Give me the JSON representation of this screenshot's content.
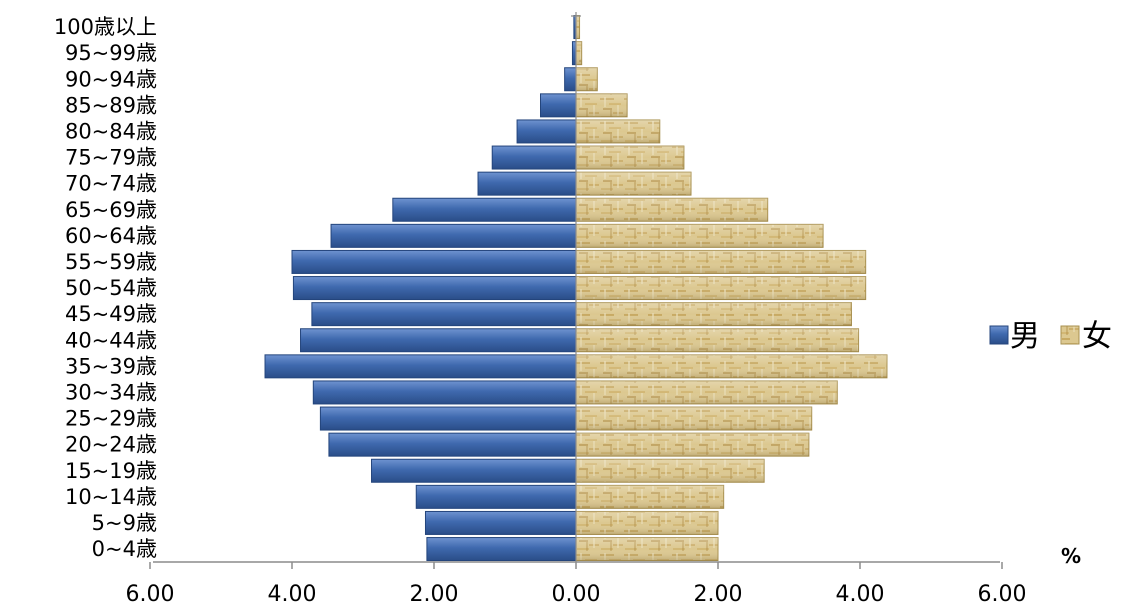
{
  "chart_data": {
    "type": "bar",
    "orientation": "horizontal",
    "subtype": "population-pyramid",
    "categories": [
      "0~4歳",
      "5~9歳",
      "10~14歳",
      "15~19歳",
      "20~24歳",
      "25~29歳",
      "30~34歳",
      "35~39歳",
      "40~44歳",
      "45~49歳",
      "50~54歳",
      "55~59歳",
      "60~64歳",
      "65~69歳",
      "70~74歳",
      "75~79歳",
      "80~84歳",
      "85~89歳",
      "90~94歳",
      "95~99歳",
      "100歳以上"
    ],
    "series": [
      {
        "name": "男",
        "side": "left",
        "color": "#3f69ae",
        "values": [
          2.1,
          2.12,
          2.25,
          2.88,
          3.48,
          3.6,
          3.7,
          4.38,
          3.88,
          3.72,
          3.98,
          4.0,
          3.45,
          2.58,
          1.38,
          1.18,
          0.83,
          0.5,
          0.16,
          0.05,
          0.03
        ]
      },
      {
        "name": "女",
        "side": "right",
        "color": "#d9c48a",
        "values": [
          2.0,
          2.0,
          2.08,
          2.65,
          3.28,
          3.32,
          3.68,
          4.38,
          3.98,
          3.88,
          4.08,
          4.08,
          3.48,
          2.7,
          1.62,
          1.52,
          1.18,
          0.72,
          0.3,
          0.08,
          0.05
        ]
      }
    ],
    "xlim": [
      -6,
      6
    ],
    "xticks": [
      "6.00",
      "4.00",
      "2.00",
      "0.00",
      "2.00",
      "4.00",
      "6.00"
    ],
    "xunit": "%",
    "legend_position": "right",
    "grid": false
  }
}
